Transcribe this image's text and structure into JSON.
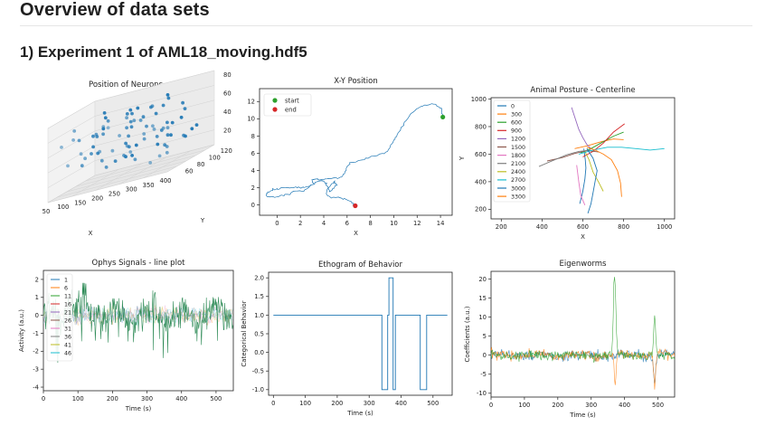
{
  "page": {
    "title": "Overview of data sets",
    "section_title": "1) Experiment 1 of AML18_moving.hdf5"
  },
  "colors": {
    "tab10": [
      "#1f77b4",
      "#ff7f0e",
      "#2ca02c",
      "#d62728",
      "#9467bd",
      "#8c564b",
      "#e377c2",
      "#7f7f7f",
      "#bcbd22",
      "#17becf"
    ],
    "line_blue": "#1f77b4",
    "start": "#2ca02c",
    "end": "#d62728"
  },
  "chart_data": [
    {
      "type": "scatter",
      "variant": "3d",
      "title": "Position of Neurons",
      "xlabel": "X",
      "ylabel": "Y",
      "zlabel": "",
      "xticks": [
        "50",
        "100",
        "150",
        "200",
        "250",
        "300",
        "350",
        "400"
      ],
      "yticks": [
        "60",
        "80",
        "100",
        "120"
      ],
      "zticks": [
        "20",
        "40",
        "60",
        "80"
      ],
      "approx_points": 80
    },
    {
      "type": "line",
      "title": "X-Y Position",
      "xlabel": "X",
      "ylabel": "",
      "xlim": [
        -1.5,
        15
      ],
      "ylim": [
        -1.2,
        13.5
      ],
      "xticks": [
        "0",
        "2",
        "4",
        "6",
        "8",
        "10",
        "12",
        "14"
      ],
      "yticks": [
        "0",
        "2",
        "4",
        "6",
        "8",
        "10",
        "12"
      ],
      "legend": [
        "start",
        "end"
      ],
      "legend_position": "top-left",
      "start": [
        14.2,
        10.2
      ],
      "end": [
        6.7,
        -0.1
      ],
      "path": [
        [
          6.7,
          -0.1
        ],
        [
          6.3,
          0.3
        ],
        [
          5.8,
          0.7
        ],
        [
          5.2,
          0.9
        ],
        [
          4.6,
          0.8
        ],
        [
          4.2,
          1.4
        ],
        [
          4.5,
          2.1
        ],
        [
          4.9,
          2.7
        ],
        [
          5.1,
          2.3
        ],
        [
          4.8,
          1.8
        ],
        [
          4.5,
          1.5
        ],
        [
          4.3,
          2.2
        ],
        [
          4.1,
          2.7
        ],
        [
          3.8,
          2.8
        ],
        [
          3.3,
          2.6
        ],
        [
          2.7,
          2.1
        ],
        [
          2.2,
          2.0
        ],
        [
          1.6,
          2.1
        ],
        [
          0.9,
          2.0
        ],
        [
          0.2,
          1.9
        ],
        [
          -0.3,
          1.8
        ],
        [
          -0.8,
          1.5
        ],
        [
          -0.9,
          1.1
        ],
        [
          -0.6,
          0.9
        ],
        [
          -0.1,
          0.9
        ],
        [
          0.4,
          1.1
        ],
        [
          1.0,
          1.2
        ],
        [
          1.6,
          1.6
        ],
        [
          2.3,
          1.6
        ],
        [
          2.8,
          2.2
        ],
        [
          3.1,
          2.4
        ],
        [
          3.0,
          2.9
        ],
        [
          3.3,
          3.0
        ],
        [
          3.8,
          2.9
        ],
        [
          4.3,
          3.0
        ],
        [
          4.9,
          3.1
        ],
        [
          5.4,
          3.2
        ],
        [
          5.8,
          3.7
        ],
        [
          6.0,
          4.4
        ],
        [
          6.3,
          4.9
        ],
        [
          6.9,
          5.1
        ],
        [
          7.5,
          5.3
        ],
        [
          8.1,
          5.6
        ],
        [
          8.7,
          5.8
        ],
        [
          9.3,
          6.1
        ],
        [
          9.6,
          6.6
        ],
        [
          9.9,
          7.3
        ],
        [
          10.2,
          8.0
        ],
        [
          10.6,
          8.8
        ],
        [
          11.0,
          9.6
        ],
        [
          11.4,
          10.4
        ],
        [
          11.9,
          11.1
        ],
        [
          12.5,
          11.5
        ],
        [
          13.1,
          11.7
        ],
        [
          13.7,
          11.6
        ],
        [
          14.1,
          11.2
        ],
        [
          14.2,
          10.2
        ]
      ]
    },
    {
      "type": "line",
      "title": "Animal Posture - Centerline",
      "xlabel": "X",
      "ylabel": "Y",
      "xlim": [
        150,
        1050
      ],
      "ylim": [
        130,
        1010
      ],
      "xticks": [
        "200",
        "400",
        "600",
        "800",
        "1000"
      ],
      "yticks": [
        "200",
        "400",
        "600",
        "800",
        "1000"
      ],
      "legend": [
        "0",
        "300",
        "600",
        "900",
        "1200",
        "1500",
        "1800",
        "2100",
        "2400",
        "2700",
        "3000",
        "3300"
      ],
      "legend_position": "top-left",
      "series": [
        {
          "name": "0",
          "values": [
            [
              585,
              240
            ],
            [
              600,
              330
            ],
            [
              610,
              420
            ],
            [
              615,
              500
            ],
            [
              612,
              560
            ],
            [
              608,
              605
            ],
            [
              605,
              640
            ]
          ]
        },
        {
          "name": "300",
          "values": [
            [
              560,
              640
            ],
            [
              620,
              660
            ],
            [
              690,
              690
            ],
            [
              750,
              710
            ],
            [
              800,
              705
            ]
          ]
        },
        {
          "name": "600",
          "values": [
            [
              590,
              610
            ],
            [
              640,
              640
            ],
            [
              700,
              690
            ],
            [
              750,
              730
            ],
            [
              800,
              760
            ]
          ]
        },
        {
          "name": "900",
          "values": [
            [
              600,
              580
            ],
            [
              650,
              620
            ],
            [
              700,
              680
            ],
            [
              750,
              760
            ],
            [
              805,
              820
            ]
          ]
        },
        {
          "name": "1200",
          "values": [
            [
              545,
              940
            ],
            [
              560,
              870
            ],
            [
              580,
              780
            ],
            [
              600,
              720
            ],
            [
              620,
              670
            ],
            [
              640,
              640
            ]
          ]
        },
        {
          "name": "1500",
          "values": [
            [
              425,
              550
            ],
            [
              500,
              575
            ],
            [
              560,
              605
            ],
            [
              620,
              625
            ],
            [
              680,
              615
            ]
          ]
        },
        {
          "name": "1800",
          "values": [
            [
              570,
              520
            ],
            [
              580,
              400
            ],
            [
              590,
              300
            ],
            [
              610,
              230
            ]
          ]
        },
        {
          "name": "2100",
          "values": [
            [
              385,
              510
            ],
            [
              455,
              555
            ],
            [
              520,
              595
            ],
            [
              580,
              620
            ],
            [
              640,
              630
            ]
          ]
        },
        {
          "name": "2400",
          "values": [
            [
              610,
              620
            ],
            [
              630,
              560
            ],
            [
              650,
              470
            ],
            [
              680,
              390
            ],
            [
              700,
              330
            ]
          ]
        },
        {
          "name": "2700",
          "values": [
            [
              580,
              600
            ],
            [
              650,
              630
            ],
            [
              720,
              650
            ],
            [
              790,
              650
            ],
            [
              860,
              640
            ],
            [
              930,
              630
            ],
            [
              1000,
              640
            ]
          ]
        },
        {
          "name": "3000",
          "values": [
            [
              620,
              640
            ],
            [
              650,
              570
            ],
            [
              670,
              480
            ],
            [
              660,
              400
            ],
            [
              650,
              320
            ],
            [
              640,
              240
            ],
            [
              625,
              170
            ]
          ]
        },
        {
          "name": "3300",
          "values": [
            [
              620,
              650
            ],
            [
              660,
              630
            ],
            [
              700,
              600
            ],
            [
              740,
              560
            ],
            [
              770,
              480
            ],
            [
              785,
              390
            ],
            [
              790,
              290
            ]
          ]
        }
      ]
    },
    {
      "type": "line",
      "title": "Ophys Signals - line plot",
      "xlabel": "Time (s)",
      "ylabel": "Activity (a.u.)",
      "xlim": [
        0,
        550
      ],
      "ylim": [
        -4.2,
        2.5
      ],
      "xticks": [
        "0",
        "100",
        "200",
        "300",
        "400",
        "500"
      ],
      "yticks": [
        "-4",
        "-3",
        "-2",
        "-1",
        "0",
        "1",
        "2"
      ],
      "legend": [
        "1",
        "6",
        "11",
        "16",
        "21",
        "26",
        "31",
        "36",
        "41",
        "46"
      ],
      "legend_position": "top-left",
      "series_note": "dense noisy traces, mostly visible as one dark green trace"
    },
    {
      "type": "line",
      "title": "Ethogram of Behavior",
      "xlabel": "Time (s)",
      "ylabel": "Categorical Behavior",
      "xlim": [
        -15,
        560
      ],
      "ylim": [
        -1.15,
        2.15
      ],
      "xticks": [
        "0",
        "100",
        "200",
        "300",
        "400",
        "500"
      ],
      "yticks": [
        "-1.0",
        "-0.5",
        "0.0",
        "0.5",
        "1.0",
        "1.5",
        "2.0"
      ],
      "steps": [
        [
          0,
          1
        ],
        [
          340,
          1
        ],
        [
          340,
          -1
        ],
        [
          358,
          -1
        ],
        [
          358,
          1
        ],
        [
          362,
          1
        ],
        [
          362,
          2
        ],
        [
          375,
          2
        ],
        [
          375,
          -1
        ],
        [
          382,
          -1
        ],
        [
          382,
          1
        ],
        [
          460,
          1
        ],
        [
          460,
          -1
        ],
        [
          480,
          -1
        ],
        [
          480,
          1
        ],
        [
          545,
          1
        ]
      ]
    },
    {
      "type": "line",
      "title": "Eigenworms",
      "xlabel": "Time (s)",
      "ylabel": "Coefficients (a.u.)",
      "xlim": [
        0,
        550
      ],
      "ylim": [
        -11,
        22
      ],
      "xticks": [
        "0",
        "100",
        "200",
        "300",
        "400",
        "500"
      ],
      "yticks": [
        "-10",
        "-5",
        "0",
        "5",
        "10",
        "15",
        "20"
      ],
      "series_note": "several noisy traces near zero with spikes near t=370 (up to ~21) and t=490"
    }
  ]
}
